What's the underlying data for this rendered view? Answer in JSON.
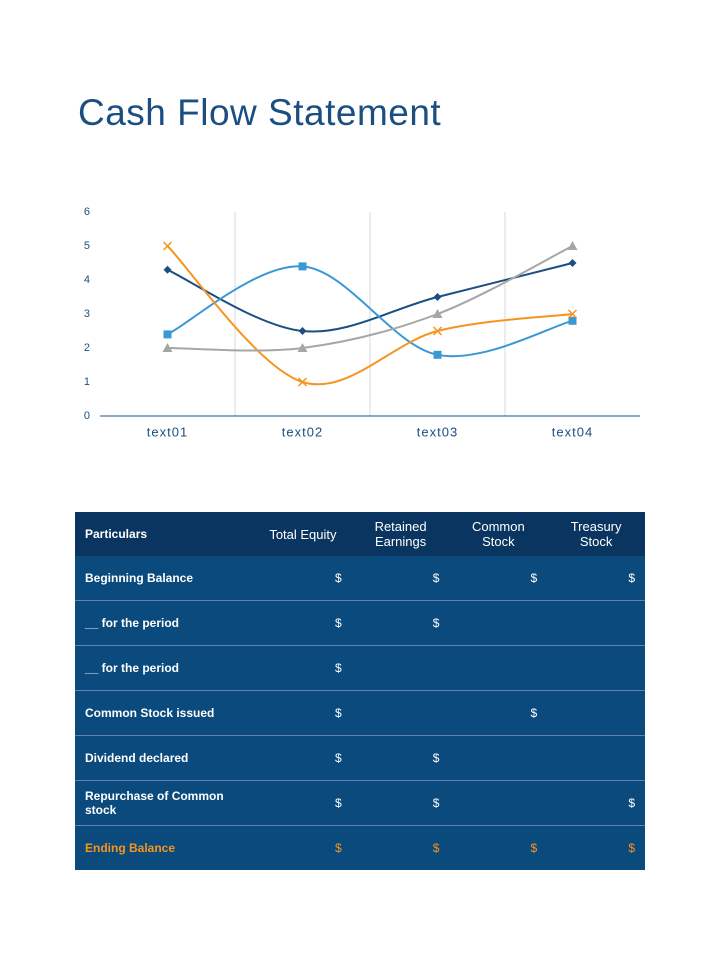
{
  "header": {
    "title": "Cash Flow Statement"
  },
  "chart_data": {
    "type": "line",
    "categories": [
      "text01",
      "text02",
      "text03",
      "text04"
    ],
    "series": [
      {
        "color": "#1b4f82",
        "marker": "diamond",
        "values": [
          4.3,
          2.5,
          3.5,
          4.5
        ]
      },
      {
        "color": "#3a98d4",
        "marker": "square",
        "values": [
          2.4,
          4.4,
          1.8,
          2.8
        ]
      },
      {
        "color": "#f7941d",
        "marker": "x",
        "values": [
          5,
          1,
          2.5,
          3
        ]
      },
      {
        "color": "#a6a6a6",
        "marker": "triangle",
        "values": [
          2,
          2,
          3,
          5
        ]
      }
    ],
    "ylim": [
      0,
      6
    ],
    "yticks": [
      0,
      1,
      2,
      3,
      4,
      5,
      6
    ],
    "grid": true,
    "smooth": true
  },
  "table": {
    "columns": [
      "Particulars",
      "Total Equity",
      "Retained Earnings",
      "Common Stock",
      "Treasury Stock"
    ],
    "rows": [
      [
        "Beginning Balance",
        "$",
        "$",
        "$",
        "$"
      ],
      [
        "__ for the period",
        "$",
        "$",
        null,
        null
      ],
      [
        "__ for the period",
        "$",
        null,
        null,
        null
      ],
      [
        "Common Stock issued",
        "$",
        null,
        "$",
        null
      ],
      [
        "Dividend declared",
        "$",
        "$",
        null,
        null
      ],
      [
        "Repurchase of Common stock",
        "$",
        "$",
        null,
        "$"
      ]
    ],
    "footer": [
      "Ending Balance",
      "$",
      "$",
      "$",
      "$"
    ]
  }
}
